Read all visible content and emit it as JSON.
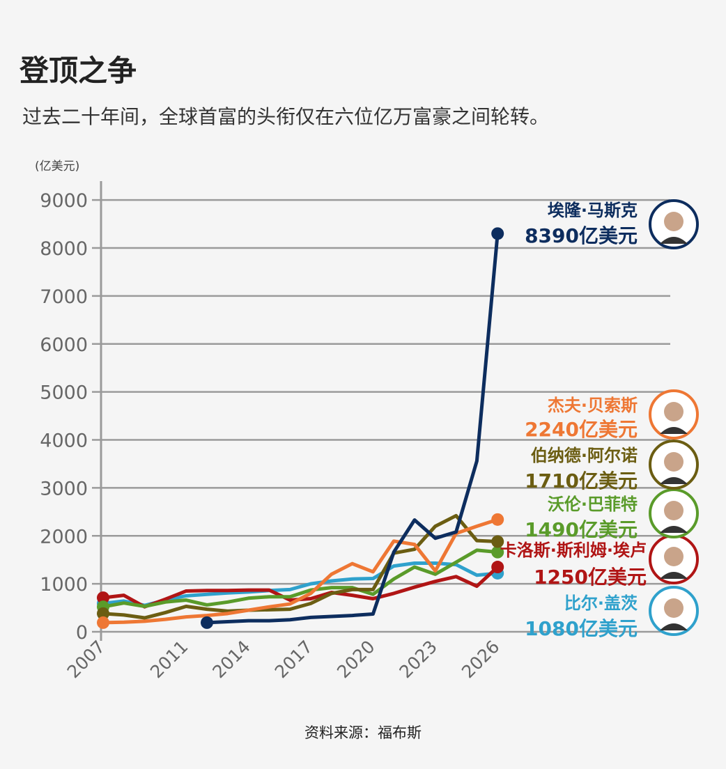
{
  "title": "登顶之争",
  "subtitle": "过去二十年间，全球首富的头衔仅在六位亿万富豪之间轮转。",
  "source": "资料来源：福布斯",
  "chart_data": {
    "type": "line",
    "title": "登顶之争",
    "ylabel": "(亿美元)",
    "xlabel": "",
    "xlim": [
      2007,
      2026
    ],
    "ylim": [
      0,
      9000
    ],
    "yticks": [
      0,
      1000,
      2000,
      3000,
      4000,
      5000,
      6000,
      7000,
      8000,
      9000
    ],
    "xticks": [
      2007,
      2011,
      2014,
      2017,
      2020,
      2023,
      2026
    ],
    "grid": true,
    "x": [
      2007,
      2008,
      2009,
      2010,
      2011,
      2012,
      2013,
      2014,
      2015,
      2016,
      2017,
      2018,
      2019,
      2020,
      2021,
      2022,
      2023,
      2024,
      2025,
      2026
    ],
    "series": [
      {
        "name": "比尔·盖茨",
        "label": "1080亿美元",
        "color": "#2fa1cc",
        "values": [
          590,
          640,
          550,
          660,
          750,
          780,
          810,
          830,
          860,
          880,
          1000,
          1060,
          1100,
          1110,
          1370,
          1430,
          1430,
          1400,
          1180,
          1220
        ]
      },
      {
        "name": "卡洛斯·斯利姆·埃卢",
        "label": "1250亿美元",
        "color": "#b01515",
        "values": [
          710,
          760,
          520,
          680,
          850,
          860,
          860,
          870,
          870,
          660,
          690,
          820,
          760,
          690,
          800,
          930,
          1050,
          1150,
          950,
          1350
        ]
      },
      {
        "name": "沃伦·巴菲特",
        "label": "1490亿美元",
        "color": "#5a9b2a",
        "values": [
          520,
          600,
          530,
          620,
          660,
          560,
          620,
          700,
          730,
          730,
          870,
          920,
          920,
          780,
          1100,
          1350,
          1200,
          1450,
          1700,
          1660
        ]
      },
      {
        "name": "伯纳德·阿尔诺",
        "label": "1710亿美元",
        "color": "#6b5d12",
        "values": [
          380,
          350,
          290,
          400,
          530,
          470,
          430,
          450,
          460,
          470,
          590,
          800,
          880,
          880,
          1640,
          1720,
          2200,
          2420,
          1900,
          1880
        ]
      },
      {
        "name": "杰夫·贝索斯",
        "label": "2240亿美元",
        "color": "#ee7734",
        "values": [
          190,
          200,
          220,
          260,
          310,
          340,
          380,
          450,
          520,
          580,
          800,
          1200,
          1420,
          1250,
          1890,
          1820,
          1270,
          2050,
          2200,
          2340
        ]
      },
      {
        "name": "埃隆·马斯克",
        "label": "8390亿美元",
        "color": "#0d2d5e",
        "values": [
          null,
          null,
          null,
          null,
          null,
          190,
          210,
          230,
          230,
          250,
          300,
          320,
          340,
          370,
          1660,
          2330,
          1950,
          2080,
          3560,
          8300
        ]
      }
    ]
  }
}
